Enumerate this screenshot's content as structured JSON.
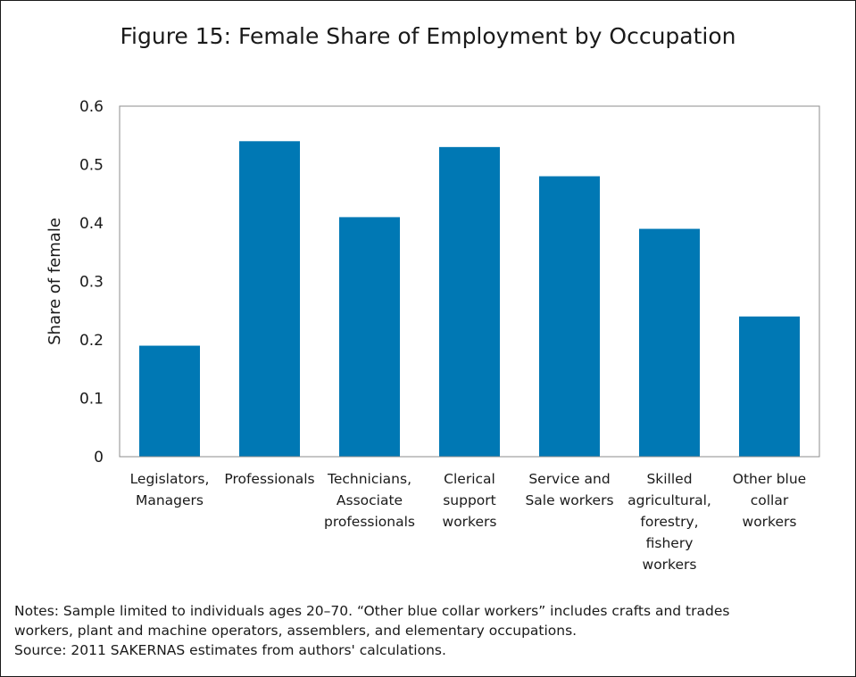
{
  "chart_data": {
    "type": "bar",
    "title": "Figure 15: Female Share of Employment by Occupation",
    "ylabel": "Share of female",
    "xlabel": "",
    "ylim": [
      0,
      0.6
    ],
    "yticks": [
      "0",
      "0.1",
      "0.2",
      "0.3",
      "0.4",
      "0.5",
      "0.6"
    ],
    "categories": [
      [
        "Legislators,",
        "Managers"
      ],
      [
        "Professionals"
      ],
      [
        "Technicians,",
        "Associate",
        "professionals"
      ],
      [
        "Clerical",
        "support",
        "workers"
      ],
      [
        "Service and",
        "Sale workers"
      ],
      [
        "Skilled",
        "agricultural,",
        "forestry,",
        "fishery",
        "workers"
      ],
      [
        "Other blue",
        "collar",
        "workers"
      ]
    ],
    "values": [
      0.19,
      0.54,
      0.41,
      0.53,
      0.48,
      0.39,
      0.24
    ],
    "bar_color": "#0078b4",
    "grid": false
  },
  "notes": [
    "Notes: Sample limited to individuals ages 20–70. “Other blue collar workers” includes crafts and trades",
    "workers, plant and machine operators, assemblers, and elementary occupations.",
    "Source: 2011 SAKERNAS estimates from authors' calculations."
  ]
}
